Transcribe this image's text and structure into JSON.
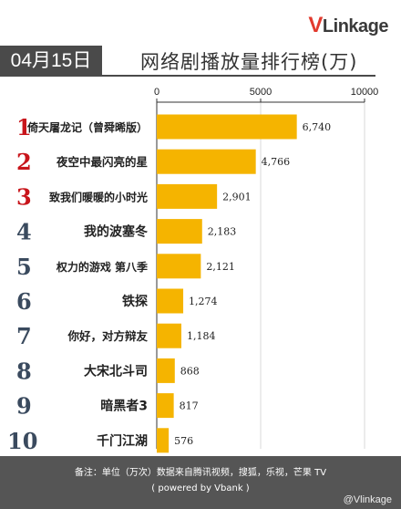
{
  "logo": {
    "v": "V",
    "rest": "Linkage"
  },
  "date": "04月15日",
  "title": "网络剧播放量排行榜(万)",
  "footer": {
    "line1": "备注：单位（万次）数据来自腾讯视频，搜狐，乐视，芒果 TV",
    "line2": "( powered by Vbank )"
  },
  "watermark": "@Vlinkage",
  "colors": {
    "bar": "#f5b400",
    "rank_top": "#c8151b",
    "rank_other": "#3a4a5e"
  },
  "chart_data": {
    "type": "bar",
    "orientation": "horizontal",
    "title": "网络剧播放量排行榜(万)",
    "xlim": [
      0,
      10000
    ],
    "xticks": [
      "0",
      "5000",
      "10000"
    ],
    "grid": true,
    "ranks": [
      "1",
      "2",
      "3",
      "4",
      "5",
      "6",
      "7",
      "8",
      "9",
      "10"
    ],
    "categories": [
      "倚天屠龙记（曾舜晞版）",
      "夜空中最闪亮的星",
      "致我们暖暖的小时光",
      "我的波塞冬",
      "权力的游戏 第八季",
      "铁探",
      "你好，对方辩友",
      "大宋北斗司",
      "暗黑者3",
      "千门江湖"
    ],
    "values": [
      6740,
      4766,
      2901,
      2183,
      2121,
      1274,
      1184,
      868,
      817,
      576
    ],
    "value_labels": [
      "6,740",
      "4,766",
      "2,901",
      "2,183",
      "2,121",
      "1,274",
      "1,184",
      "868",
      "817",
      "576"
    ]
  }
}
